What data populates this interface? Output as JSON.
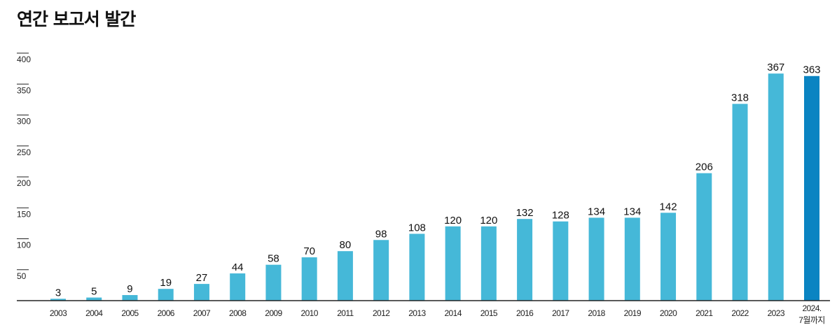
{
  "title": "연간 보고서 발간",
  "colors": {
    "bar": "#45b8d8",
    "bar_highlight": "#0a84c2",
    "axis": "#222222"
  },
  "chart_data": {
    "type": "bar",
    "title": "연간 보고서 발간",
    "xlabel": "",
    "ylabel": "",
    "ylim": [
      0,
      400
    ],
    "yticks": [
      "50",
      "100",
      "150",
      "200",
      "250",
      "300",
      "350",
      "400"
    ],
    "categories": [
      "2003",
      "2004",
      "2005",
      "2006",
      "2007",
      "2008",
      "2009",
      "2010",
      "2011",
      "2012",
      "2013",
      "2014",
      "2015",
      "2016",
      "2017",
      "2018",
      "2019",
      "2020",
      "2021",
      "2022",
      "2023",
      "2024."
    ],
    "category_sublabels": {
      "2024.": "7월까지"
    },
    "values": [
      3,
      5,
      9,
      19,
      27,
      44,
      58,
      70,
      80,
      98,
      108,
      120,
      120,
      132,
      128,
      134,
      134,
      142,
      206,
      318,
      367,
      363
    ],
    "highlight_category": "2024.",
    "grid": false,
    "legend": "none"
  }
}
